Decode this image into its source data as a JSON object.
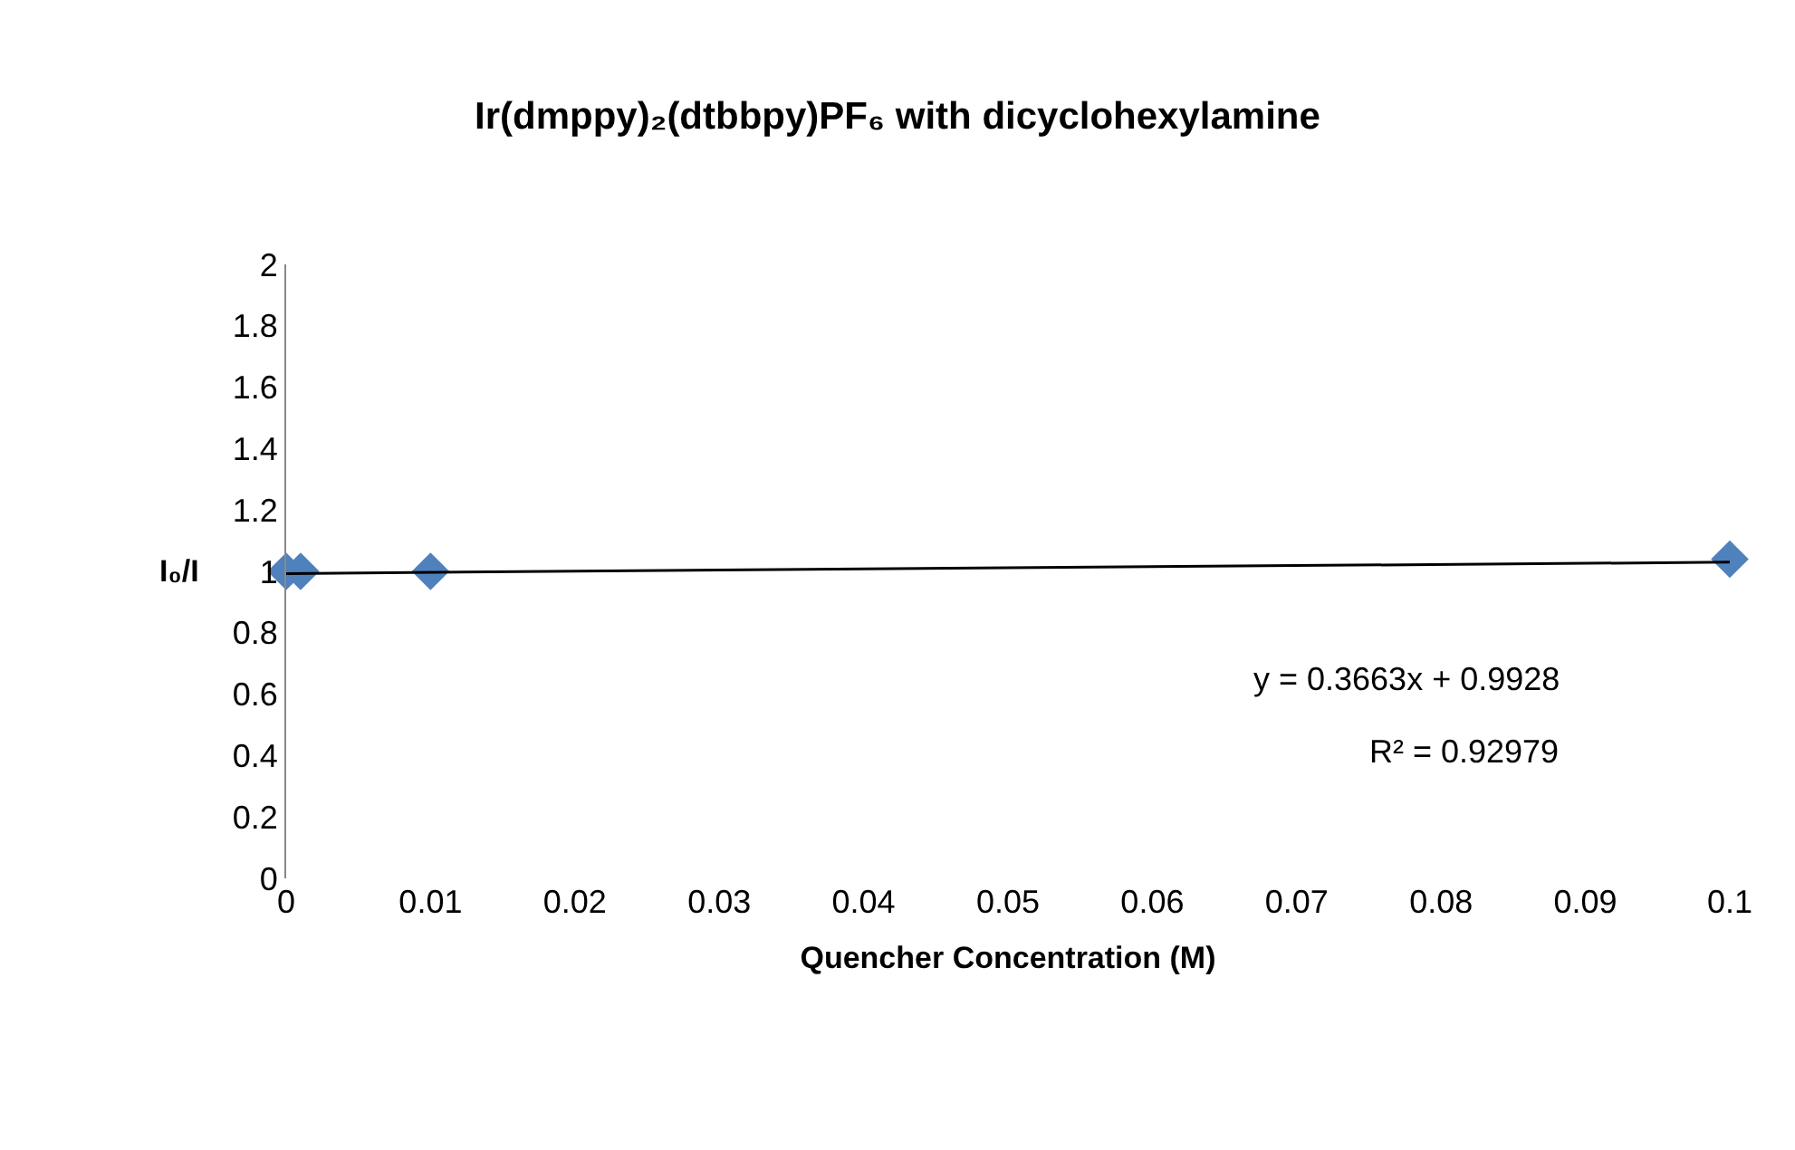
{
  "chart_data": {
    "type": "scatter",
    "title": "Ir(dmppy)₂(dtbbpy)PF₆ with dicyclohexylamine",
    "xlabel": "Quencher Concentration (M)",
    "ylabel": "I₀/I",
    "series": [
      {
        "color": "#4f81bd",
        "x": [
          0,
          0.001,
          0.01,
          0.1
        ],
        "values": [
          1.0,
          1.0,
          1.0,
          1.04
        ],
        "marker": "diamond"
      },
      {
        "type": "line",
        "color": "#000000",
        "x": [
          0,
          0.1
        ],
        "values": [
          0.993,
          1.03
        ],
        "marker": "none"
      }
    ],
    "xlim": [
      0,
      0.1
    ],
    "xticks": [
      0,
      0.01,
      0.02,
      0.03,
      0.04,
      0.05,
      0.06,
      0.07,
      0.08,
      0.09,
      0.1
    ],
    "ylim": [
      0,
      2
    ],
    "yticks": [
      0,
      0.2,
      0.4,
      0.6,
      0.8,
      1,
      1.2,
      1.4,
      1.6,
      1.8,
      2
    ],
    "annotations": [
      "y = 0.3663x + 0.9928",
      "R² = 0.92979"
    ]
  }
}
